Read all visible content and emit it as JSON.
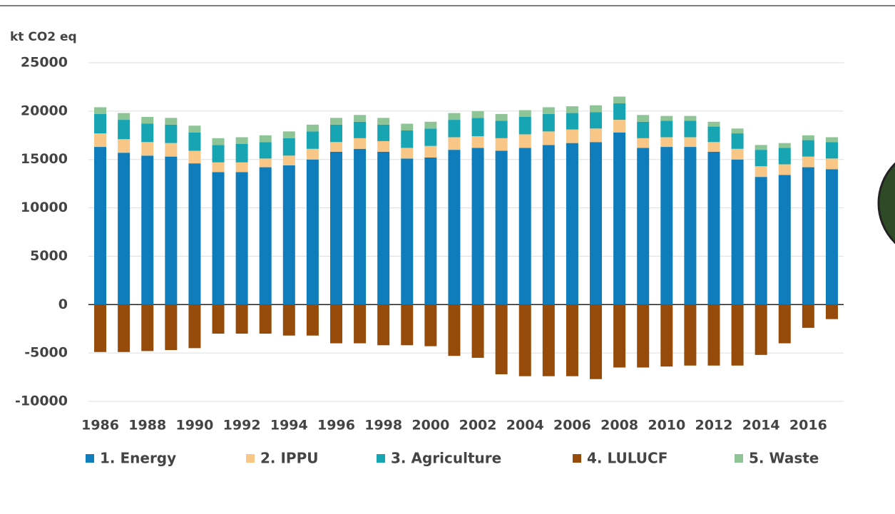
{
  "chart_data": {
    "type": "bar",
    "stacked": true,
    "y_label": "kt CO2 eq",
    "categories": [
      "1986",
      null,
      "1988",
      null,
      "1990",
      null,
      "1992",
      null,
      "1994",
      null,
      "1996",
      null,
      "1998",
      null,
      "2000",
      null,
      "2002",
      null,
      "2004",
      null,
      "2006",
      null,
      "2008",
      null,
      "2010",
      null,
      "2012",
      null,
      "2014",
      null,
      "2016",
      null
    ],
    "series": [
      {
        "name": "1.  Energy",
        "color": "#0f7dbb",
        "values": [
          16300,
          15700,
          15400,
          15300,
          14600,
          13700,
          13700,
          14200,
          14400,
          15000,
          15800,
          16100,
          15800,
          15100,
          15200,
          16000,
          16200,
          15900,
          16200,
          16500,
          16700,
          16800,
          17800,
          16200,
          16300,
          16300,
          15800,
          15000,
          13200,
          13400,
          14200,
          14000
        ]
      },
      {
        "name": "2.  IPPU",
        "color": "#f8c787",
        "values": [
          1400,
          1400,
          1400,
          1400,
          1300,
          1000,
          1000,
          900,
          1000,
          1100,
          1000,
          1100,
          1100,
          1100,
          1200,
          1300,
          1200,
          1300,
          1400,
          1400,
          1400,
          1400,
          1300,
          1000,
          1000,
          1000,
          1000,
          1100,
          1100,
          1100,
          1100,
          1100
        ]
      },
      {
        "name": "3.  Agriculture",
        "color": "#17a5b4",
        "values": [
          2000,
          2000,
          1900,
          1900,
          1900,
          1800,
          1900,
          1700,
          1800,
          1800,
          1800,
          1700,
          1700,
          1800,
          1800,
          1800,
          1900,
          1800,
          1800,
          1800,
          1700,
          1700,
          1700,
          1700,
          1700,
          1700,
          1600,
          1600,
          1700,
          1700,
          1700,
          1700
        ]
      },
      {
        "name": "4.  LULUCF",
        "color": "#964b0a",
        "values": [
          -4900,
          -4900,
          -4800,
          -4700,
          -4500,
          -3000,
          -3000,
          -3000,
          -3200,
          -3200,
          -4000,
          -4000,
          -4200,
          -4200,
          -4300,
          -5300,
          -5500,
          -7200,
          -7400,
          -7400,
          -7400,
          -7700,
          -6500,
          -6500,
          -6400,
          -6300,
          -6300,
          -6300,
          -5200,
          -4000,
          -2400,
          -1500
        ]
      },
      {
        "name": "5.  Waste",
        "color": "#8fc497",
        "values": [
          700,
          700,
          700,
          700,
          700,
          700,
          700,
          700,
          700,
          700,
          700,
          700,
          700,
          700,
          700,
          700,
          700,
          700,
          700,
          700,
          700,
          700,
          700,
          700,
          500,
          500,
          500,
          500,
          500,
          500,
          500,
          500
        ]
      }
    ],
    "ylim": [
      -10000,
      25000
    ],
    "yticks": [
      -10000,
      -5000,
      0,
      5000,
      10000,
      15000,
      20000,
      25000
    ],
    "grid": true,
    "legend": "bottom"
  }
}
